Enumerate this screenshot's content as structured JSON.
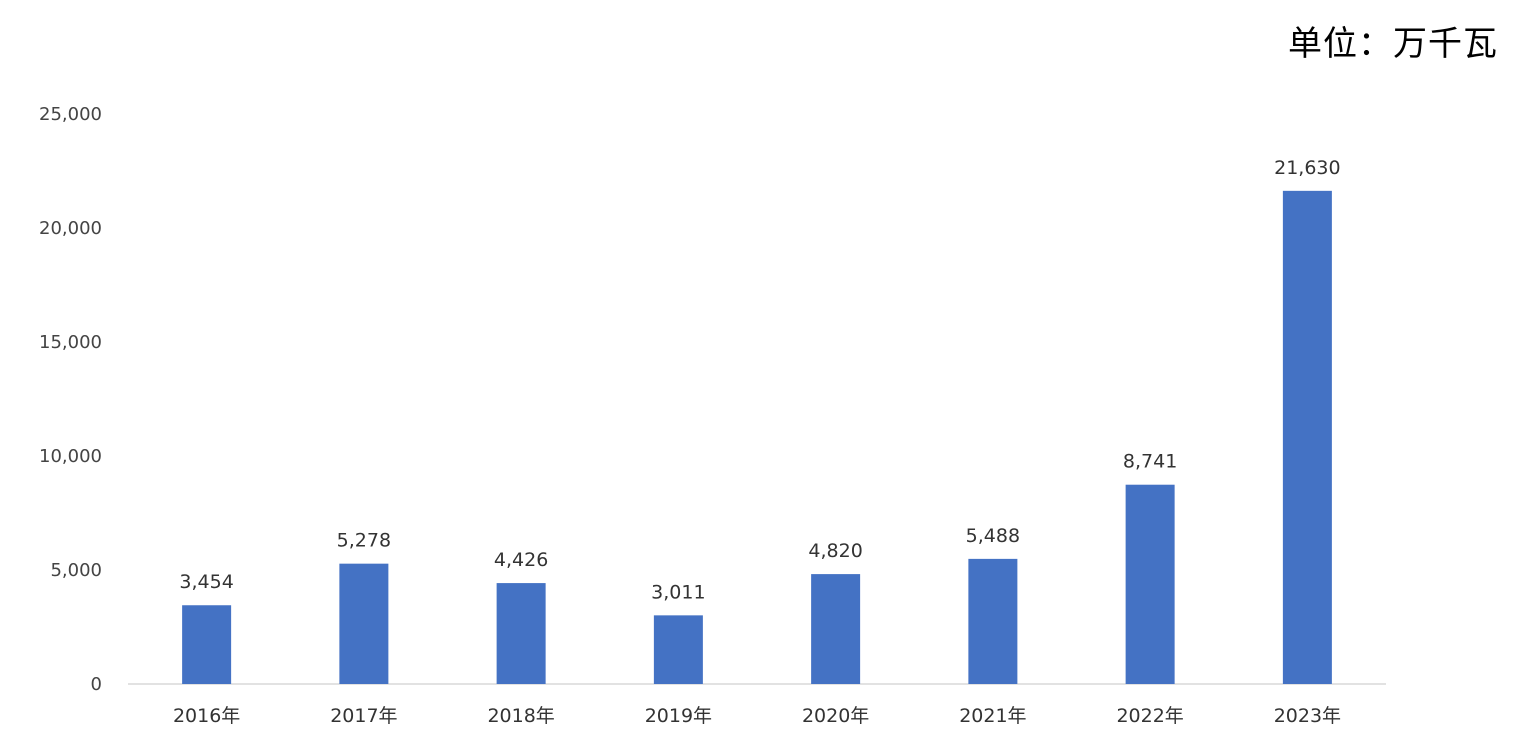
{
  "unit_label": "单位：万千瓦",
  "colors": {
    "bar": "#4472C4",
    "axis": "#D9D9D9",
    "text": "#333333"
  },
  "chart_data": {
    "type": "bar",
    "title": "",
    "xlabel": "",
    "ylabel": "",
    "categories": [
      "2016年",
      "2017年",
      "2018年",
      "2019年",
      "2020年",
      "2021年",
      "2022年",
      "2023年"
    ],
    "values": [
      3454,
      5278,
      4426,
      3011,
      4820,
      5488,
      8741,
      21630
    ],
    "data_labels": [
      "3,454",
      "5,278",
      "4,426",
      "3,011",
      "4,820",
      "5,488",
      "8,741",
      "21,630"
    ],
    "ylim": [
      0,
      25000
    ],
    "yticks": [
      0,
      5000,
      10000,
      15000,
      20000,
      25000
    ],
    "ytick_labels": [
      "0",
      "5,000",
      "10,000",
      "15,000",
      "20,000",
      "25,000"
    ],
    "grid": false,
    "legend": "none"
  }
}
